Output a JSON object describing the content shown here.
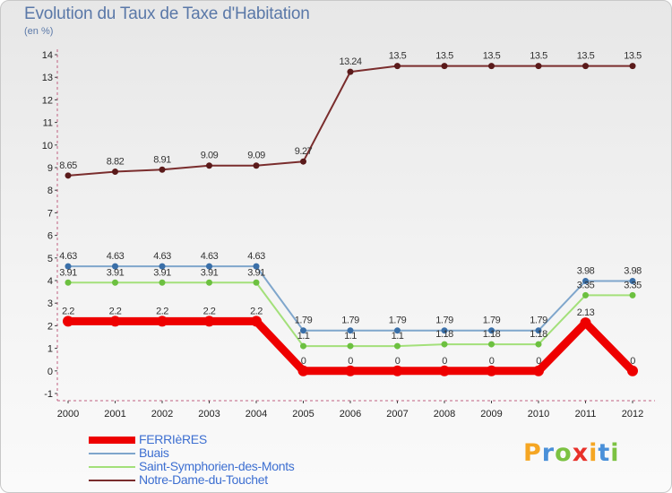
{
  "header": {
    "title": "Evolution du Taux de Taxe d'Habitation",
    "subtitle": "(en %)"
  },
  "logo": {
    "letters": [
      "P",
      "r",
      "o",
      "x",
      "i",
      "t",
      "i"
    ],
    "colors": [
      "#f5a623",
      "#4a90d9",
      "#7cc242",
      "#e8312a",
      "#f5a623",
      "#4a90d9",
      "#7cc242"
    ]
  },
  "chart_data": {
    "type": "line",
    "title": "Evolution du Taux de Taxe d'Habitation",
    "ylabel": "(en %)",
    "xlabel": "",
    "x": [
      "2000",
      "2001",
      "2002",
      "2003",
      "2004",
      "2005",
      "2006",
      "2007",
      "2008",
      "2009",
      "2010",
      "2011",
      "2012"
    ],
    "ylim": [
      -1,
      14
    ],
    "yticks": [
      "-1",
      "0",
      "1",
      "2",
      "3",
      "4",
      "5",
      "6",
      "7",
      "8",
      "9",
      "10",
      "11",
      "12",
      "13",
      "14"
    ],
    "grid": false,
    "legend_position": "bottom-left",
    "series": [
      {
        "name": "FERRIèRES",
        "color": "#ee0000",
        "values": [
          2.2,
          2.2,
          2.2,
          2.2,
          2.2,
          0,
          0,
          0,
          0,
          0,
          0,
          2.13,
          0
        ],
        "labels": [
          "2.2",
          "2.2",
          "2.2",
          "2.2",
          "2.2",
          "0",
          "0",
          "0",
          "0",
          "0",
          "0",
          "2.13",
          "0"
        ]
      },
      {
        "name": "Buais",
        "color": "#7fa6cc",
        "values": [
          4.63,
          4.63,
          4.63,
          4.63,
          4.63,
          1.79,
          1.79,
          1.79,
          1.79,
          1.79,
          1.79,
          3.98,
          3.98
        ],
        "labels": [
          "4.63",
          "4.63",
          "4.63",
          "4.63",
          "4.63",
          "1.79",
          "1.79",
          "1.79",
          "1.79",
          "1.79",
          "1.79",
          "3.98",
          "3.98"
        ]
      },
      {
        "name": "Saint-Symphorien-des-Monts",
        "color": "#a3e07a",
        "values": [
          3.91,
          3.91,
          3.91,
          3.91,
          3.91,
          1.1,
          1.1,
          1.1,
          1.18,
          1.18,
          1.18,
          3.35,
          3.35
        ],
        "labels": [
          "3.91",
          "3.91",
          "3.91",
          "3.91",
          "3.91",
          "1.1",
          "1.1",
          "1.1",
          "1.18",
          "1.18",
          "1.18",
          "3.35",
          "3.35"
        ]
      },
      {
        "name": "Notre-Dame-du-Touchet",
        "color": "#7a2d2d",
        "values": [
          8.65,
          8.82,
          8.91,
          9.09,
          9.09,
          9.27,
          13.24,
          13.5,
          13.5,
          13.5,
          13.5,
          13.5,
          13.5
        ],
        "labels": [
          "8.65",
          "8.82",
          "8.91",
          "9.09",
          "9.09",
          "9.27",
          "13.24",
          "13.5",
          "13.5",
          "13.5",
          "13.5",
          "13.5",
          "13.5"
        ]
      }
    ]
  }
}
